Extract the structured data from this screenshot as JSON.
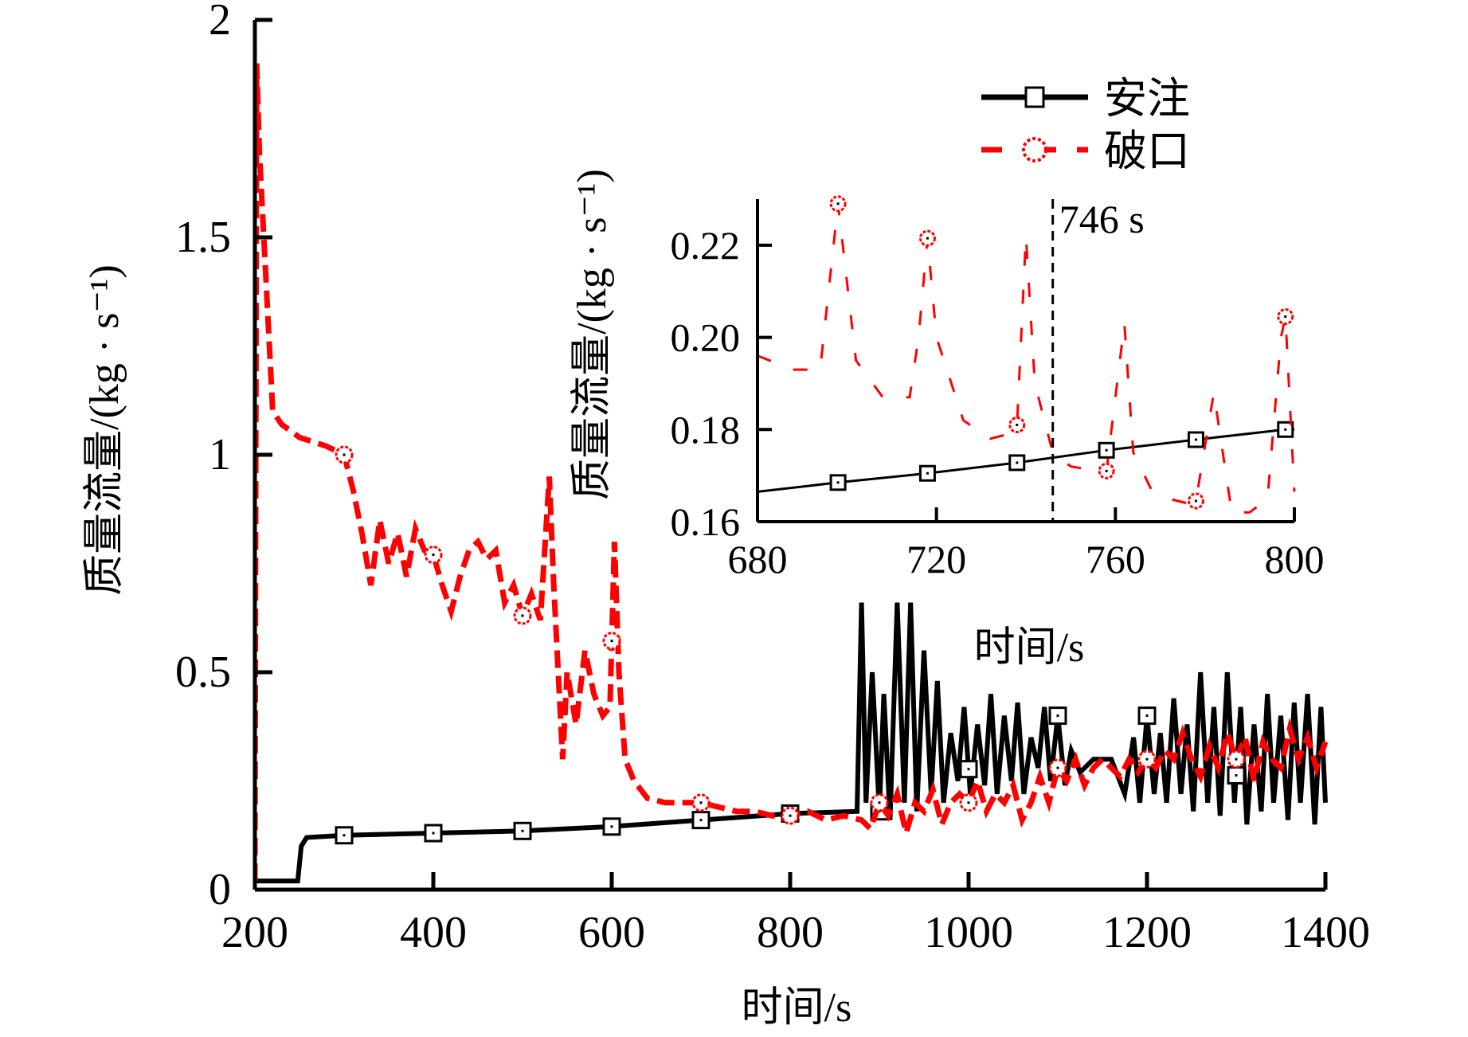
{
  "chart_data": [
    {
      "id": "main",
      "type": "line",
      "title": "",
      "xlabel": "时间/s",
      "ylabel": "质量流量/(kg · s⁻¹)",
      "xlim": [
        200,
        1400
      ],
      "ylim": [
        0,
        2
      ],
      "xticks": [
        200,
        400,
        600,
        800,
        1000,
        1200,
        1400
      ],
      "xtick_labels": [
        "200",
        "400",
        "600",
        "800",
        "1000",
        "1200",
        "1400"
      ],
      "yticks": [
        0,
        0.5,
        1,
        1.5,
        2
      ],
      "ytick_labels": [
        "0",
        "0.5",
        "1",
        "1.5",
        "2"
      ],
      "grid": false,
      "legend_position": "top-right",
      "series": [
        {
          "name": "安注",
          "color": "#000000",
          "line_style": "solid",
          "marker": "square",
          "marker_x": [
            300,
            400,
            500,
            600,
            700,
            800,
            900,
            1000,
            1100,
            1200,
            1300
          ],
          "x": [
            200,
            248,
            252,
            258,
            300,
            400,
            500,
            600,
            700,
            800,
            875,
            880,
            885,
            892,
            900,
            905,
            912,
            920,
            928,
            935,
            942,
            950,
            958,
            965,
            972,
            980,
            988,
            995,
            1002,
            1010,
            1018,
            1025,
            1032,
            1040,
            1048,
            1055,
            1062,
            1070,
            1078,
            1085,
            1092,
            1100,
            1108,
            1115,
            1125,
            1140,
            1160,
            1175,
            1185,
            1192,
            1200,
            1208,
            1215,
            1222,
            1230,
            1238,
            1245,
            1252,
            1260,
            1268,
            1275,
            1282,
            1290,
            1298,
            1305,
            1312,
            1320,
            1328,
            1335,
            1342,
            1350,
            1358,
            1365,
            1372,
            1380,
            1388,
            1395,
            1400
          ],
          "y": [
            0.02,
            0.02,
            0.1,
            0.12,
            0.125,
            0.13,
            0.135,
            0.145,
            0.16,
            0.175,
            0.18,
            0.66,
            0.2,
            0.5,
            0.18,
            0.45,
            0.16,
            0.66,
            0.2,
            0.66,
            0.18,
            0.55,
            0.22,
            0.48,
            0.2,
            0.36,
            0.25,
            0.42,
            0.22,
            0.38,
            0.24,
            0.45,
            0.22,
            0.4,
            0.25,
            0.43,
            0.22,
            0.35,
            0.28,
            0.42,
            0.25,
            0.4,
            0.24,
            0.32,
            0.27,
            0.3,
            0.3,
            0.22,
            0.35,
            0.2,
            0.4,
            0.22,
            0.36,
            0.2,
            0.44,
            0.22,
            0.38,
            0.18,
            0.5,
            0.2,
            0.42,
            0.17,
            0.5,
            0.2,
            0.42,
            0.15,
            0.38,
            0.18,
            0.45,
            0.2,
            0.4,
            0.16,
            0.43,
            0.2,
            0.45,
            0.15,
            0.42,
            0.2
          ]
        },
        {
          "name": "破口",
          "color": "#ff0000",
          "line_style": "dashed",
          "marker": "circle",
          "marker_x": [
            300,
            400,
            500,
            600,
            700,
            800,
            900,
            1000,
            1100,
            1200,
            1300
          ],
          "x": [
            200,
            202,
            205,
            210,
            215,
            220,
            230,
            250,
            280,
            300,
            310,
            320,
            330,
            340,
            350,
            360,
            370,
            380,
            390,
            400,
            410,
            420,
            430,
            440,
            450,
            460,
            470,
            480,
            490,
            500,
            510,
            520,
            530,
            535,
            540,
            545,
            550,
            560,
            570,
            580,
            590,
            598,
            603,
            608,
            615,
            625,
            640,
            660,
            680,
            700,
            720,
            740,
            760,
            780,
            800,
            820,
            840,
            860,
            880,
            890,
            900,
            910,
            920,
            930,
            940,
            950,
            960,
            970,
            980,
            990,
            1000,
            1010,
            1020,
            1030,
            1040,
            1050,
            1060,
            1070,
            1080,
            1090,
            1100,
            1110,
            1120,
            1130,
            1140,
            1150,
            1160,
            1170,
            1180,
            1190,
            1200,
            1210,
            1220,
            1230,
            1240,
            1250,
            1260,
            1270,
            1280,
            1290,
            1300,
            1310,
            1320,
            1330,
            1340,
            1350,
            1360,
            1370,
            1380,
            1390,
            1400
          ],
          "y": [
            0.02,
            1.9,
            1.7,
            1.5,
            1.3,
            1.1,
            1.07,
            1.04,
            1.02,
            1.0,
            0.92,
            0.82,
            0.7,
            0.85,
            0.75,
            0.82,
            0.72,
            0.83,
            0.78,
            0.77,
            0.7,
            0.64,
            0.72,
            0.78,
            0.8,
            0.76,
            0.78,
            0.66,
            0.7,
            0.63,
            0.68,
            0.62,
            0.95,
            0.7,
            0.5,
            0.3,
            0.5,
            0.38,
            0.55,
            0.45,
            0.4,
            0.42,
            0.8,
            0.5,
            0.3,
            0.25,
            0.21,
            0.2,
            0.2,
            0.2,
            0.19,
            0.18,
            0.18,
            0.17,
            0.17,
            0.18,
            0.16,
            0.17,
            0.16,
            0.14,
            0.2,
            0.17,
            0.22,
            0.13,
            0.2,
            0.18,
            0.23,
            0.15,
            0.2,
            0.22,
            0.2,
            0.25,
            0.18,
            0.22,
            0.2,
            0.24,
            0.16,
            0.2,
            0.26,
            0.2,
            0.28,
            0.25,
            0.3,
            0.24,
            0.28,
            0.3,
            0.28,
            0.26,
            0.3,
            0.27,
            0.3,
            0.28,
            0.32,
            0.3,
            0.36,
            0.3,
            0.26,
            0.33,
            0.28,
            0.36,
            0.3,
            0.35,
            0.25,
            0.34,
            0.3,
            0.28,
            0.37,
            0.3,
            0.35,
            0.28,
            0.34
          ]
        }
      ],
      "annotations": []
    },
    {
      "id": "inset",
      "type": "line",
      "title": "",
      "xlabel": "时间/s",
      "ylabel": "质量流量/(kg · s⁻¹)",
      "xlim": [
        680,
        800
      ],
      "ylim": [
        0.16,
        0.23
      ],
      "xticks": [
        680,
        720,
        760,
        800
      ],
      "xtick_labels": [
        "680",
        "720",
        "760",
        "800"
      ],
      "yticks": [
        0.16,
        0.18,
        0.2,
        0.22
      ],
      "ytick_labels": [
        "0.16",
        "0.18",
        "0.20",
        "0.22"
      ],
      "grid": false,
      "vline": {
        "x": 746,
        "label": "746 s"
      },
      "series": [
        {
          "name": "安注",
          "color": "#000000",
          "line_style": "solid",
          "marker": "square",
          "marker_x": [
            698,
            718,
            738,
            758,
            778,
            798
          ],
          "x": [
            680,
            698,
            718,
            738,
            758,
            778,
            798,
            800
          ],
          "y": [
            0.1665,
            0.1685,
            0.1705,
            0.1728,
            0.1755,
            0.1778,
            0.18,
            0.18
          ]
        },
        {
          "name": "破口",
          "color": "#ff0000",
          "line_style": "dashed",
          "marker": "circle",
          "marker_x": [
            698,
            718,
            738,
            758,
            778,
            798
          ],
          "x": [
            680,
            688,
            694,
            698,
            702,
            708,
            714,
            716,
            718,
            720,
            726,
            732,
            736,
            738,
            740,
            742,
            746,
            750,
            756,
            758,
            762,
            764,
            768,
            772,
            776,
            778,
            782,
            786,
            790,
            794,
            797,
            798,
            800
          ],
          "y": [
            0.196,
            0.193,
            0.193,
            0.229,
            0.195,
            0.187,
            0.187,
            0.2,
            0.2215,
            0.2,
            0.182,
            0.178,
            0.179,
            0.181,
            0.222,
            0.19,
            0.175,
            0.172,
            0.171,
            0.171,
            0.203,
            0.175,
            0.167,
            0.165,
            0.164,
            0.1645,
            0.188,
            0.162,
            0.162,
            0.165,
            0.2,
            0.2045,
            0.1665
          ]
        }
      ]
    }
  ],
  "legend": {
    "items": [
      {
        "label": "安注",
        "color": "#000000",
        "marker": "square",
        "line_style": "solid"
      },
      {
        "label": "破口",
        "color": "#ff0000",
        "marker": "circle",
        "line_style": "dashed"
      }
    ]
  }
}
